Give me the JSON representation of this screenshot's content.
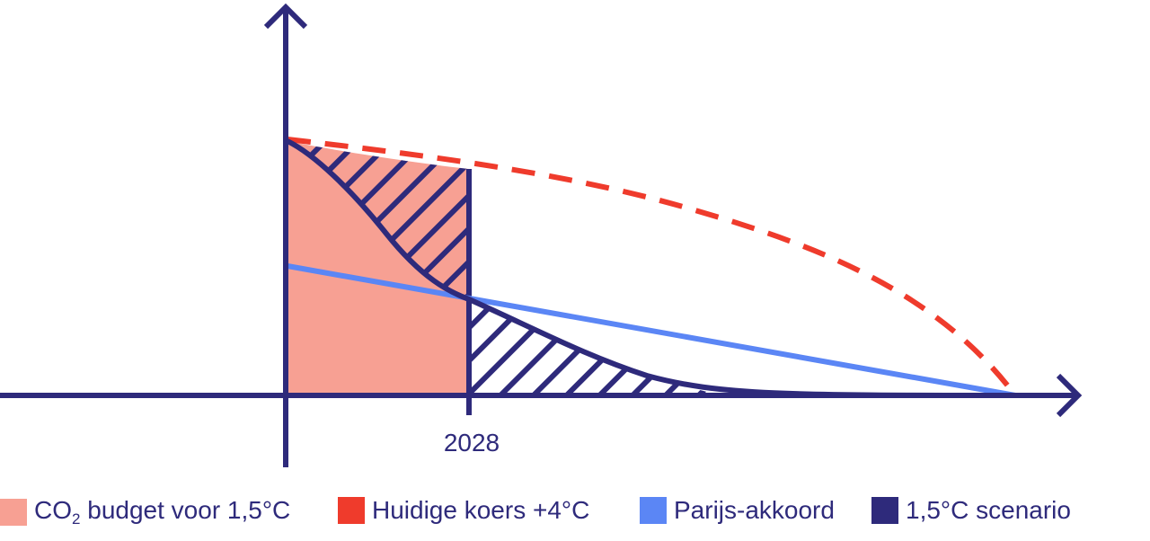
{
  "colors": {
    "axis": "#2e2a7b",
    "budget": "#f7a093",
    "current": "#ef3b2c",
    "paris": "#5b86f5",
    "scenario": "#2e2a7b"
  },
  "chart_data": {
    "type": "line",
    "title": "",
    "xlabel": "",
    "ylabel": "",
    "x_ticks": [
      "2028"
    ],
    "series": [
      {
        "name": "Huidige koers +4°C",
        "style": "dashed",
        "points": [
          [
            0,
            100
          ],
          [
            0.25,
            90
          ],
          [
            0.5,
            72
          ],
          [
            0.75,
            38
          ],
          [
            1,
            0
          ]
        ]
      },
      {
        "name": "Parijs-akkoord",
        "style": "solid",
        "points": [
          [
            0,
            50
          ],
          [
            0.25,
            37
          ],
          [
            0.5,
            25
          ],
          [
            0.75,
            12
          ],
          [
            1,
            0
          ]
        ]
      },
      {
        "name": "1,5°C scenario",
        "style": "solid",
        "points": [
          [
            0,
            100
          ],
          [
            0.1,
            75
          ],
          [
            0.25,
            37
          ],
          [
            0.4,
            12
          ],
          [
            0.6,
            1
          ],
          [
            1,
            0
          ]
        ]
      }
    ],
    "shaded_area": {
      "name": "CO2 budget voor 1,5°C",
      "x_range": [
        0,
        0.25
      ]
    }
  },
  "legend": {
    "budget_prefix": "CO",
    "budget_sub": "2",
    "budget_suffix": " budget voor 1,5°C",
    "current": "Huidige koers +4°C",
    "paris": "Parijs-akkoord",
    "scenario": "1,5°C scenario"
  }
}
